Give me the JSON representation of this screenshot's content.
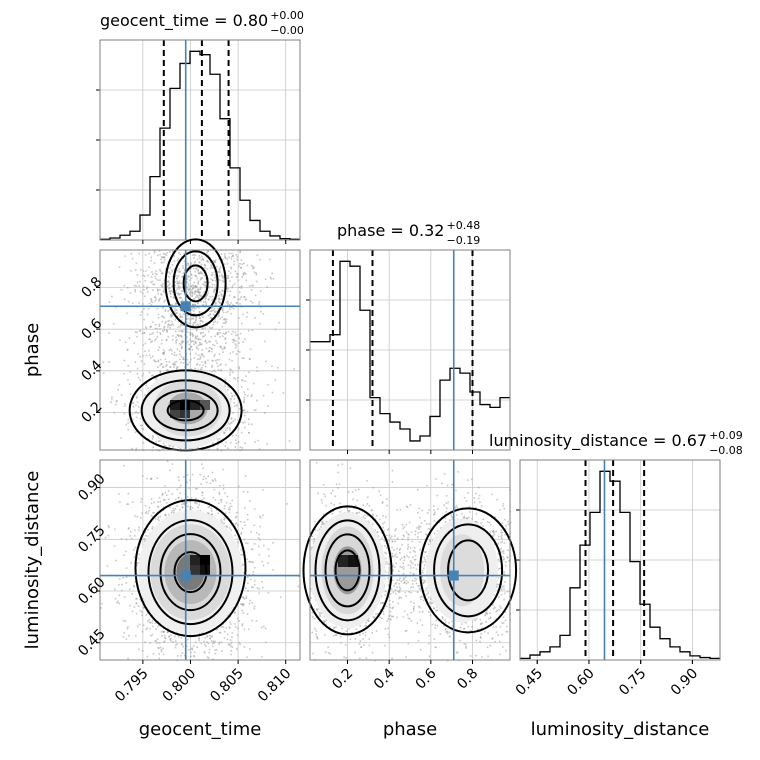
{
  "chart_data": {
    "type": "corner",
    "parameters": [
      "geocent_time",
      "phase",
      "luminosity_distance"
    ],
    "titles": [
      {
        "param": "geocent_time",
        "text": "geocent_time = 0.80",
        "plus": "+0.00",
        "minus": "−0.00"
      },
      {
        "param": "phase",
        "text": "phase = 0.32",
        "plus": "+0.48",
        "minus": "−0.19"
      },
      {
        "param": "luminosity_distance",
        "text": "luminosity_distance = 0.67",
        "plus": "+0.09",
        "minus": "−0.08"
      }
    ],
    "axis_labels": {
      "x": [
        "geocent_time",
        "phase",
        "luminosity_distance"
      ],
      "y": [
        "phase",
        "luminosity_distance"
      ]
    },
    "ranges": {
      "geocent_time": [
        0.7905,
        0.8115
      ],
      "phase": [
        0.02,
        0.98
      ],
      "luminosity_distance": [
        0.4,
        0.98
      ]
    },
    "ticks": {
      "geocent_time": [
        {
          "v": 0.795,
          "label": "0.795"
        },
        {
          "v": 0.8,
          "label": "0.800"
        },
        {
          "v": 0.805,
          "label": "0.805"
        },
        {
          "v": 0.81,
          "label": "0.810"
        }
      ],
      "phase": [
        {
          "v": 0.2,
          "label": "0.2"
        },
        {
          "v": 0.4,
          "label": "0.4"
        },
        {
          "v": 0.6,
          "label": "0.6"
        },
        {
          "v": 0.8,
          "label": "0.8"
        }
      ],
      "luminosity_distance": [
        {
          "v": 0.45,
          "label": "0.45"
        },
        {
          "v": 0.6,
          "label": "0.60"
        },
        {
          "v": 0.75,
          "label": "0.75"
        },
        {
          "v": 0.9,
          "label": "0.90"
        }
      ]
    },
    "truths": {
      "geocent_time": 0.7995,
      "phase": 0.71,
      "luminosity_distance": 0.645
    },
    "quantiles": {
      "geocent_time": [
        0.7972,
        0.8012,
        0.804
      ],
      "phase": [
        0.13,
        0.32,
        0.8
      ],
      "luminosity_distance": [
        0.59,
        0.67,
        0.76
      ]
    },
    "histograms": {
      "geocent_time": {
        "edges_start": 0.7905,
        "bin_width": 0.00105,
        "counts": [
          1,
          3,
          7,
          13,
          37,
          94,
          166,
          225,
          262,
          280,
          275,
          246,
          180,
          107,
          59,
          29,
          13,
          6,
          2,
          1
        ]
      },
      "phase": {
        "edges_start": 0.02,
        "bin_width": 0.048,
        "counts": [
          155,
          155,
          165,
          270,
          263,
          200,
          75,
          52,
          40,
          30,
          13,
          20,
          48,
          100,
          117,
          110,
          83,
          65,
          61,
          75
        ]
      },
      "luminosity_distance": {
        "edges_start": 0.4,
        "bin_width": 0.029,
        "counts": [
          2,
          6,
          10,
          16,
          30,
          88,
          140,
          180,
          230,
          218,
          180,
          120,
          68,
          40,
          26,
          16,
          10,
          5,
          3,
          2
        ]
      }
    },
    "contour_levels": [
      0.118,
      0.393,
      0.675,
      0.864
    ],
    "grid": true
  }
}
